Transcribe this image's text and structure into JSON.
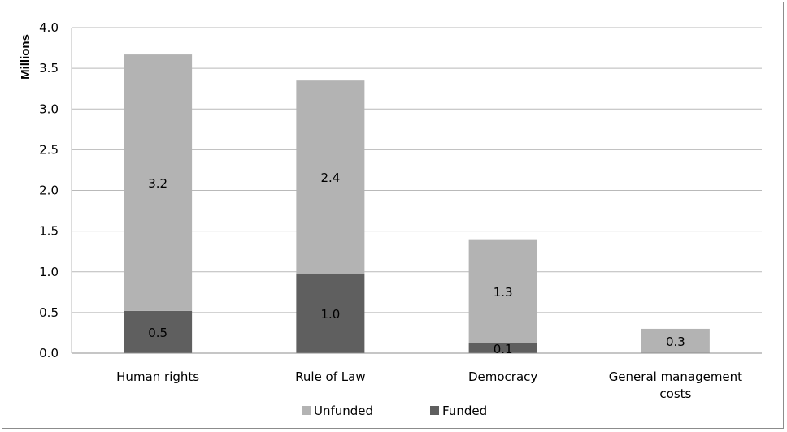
{
  "chart_data": {
    "type": "bar",
    "stacked": true,
    "ylabel": "Millions",
    "xlabel": "",
    "ylim": [
      0,
      4.0
    ],
    "yticks": [
      "0.0",
      "0.5",
      "1.0",
      "1.5",
      "2.0",
      "2.5",
      "3.0",
      "3.5",
      "4.0"
    ],
    "grid": true,
    "legend_position": "bottom",
    "categories": [
      [
        "Human rights"
      ],
      [
        "Rule of Law"
      ],
      [
        "Democracy"
      ],
      [
        "General management",
        "costs"
      ]
    ],
    "series": [
      {
        "name": "Funded",
        "color": "#5f5f5f",
        "values": [
          0.52,
          0.98,
          0.12,
          0.0
        ],
        "labels": [
          "0.5",
          "1.0",
          "0.1",
          ""
        ]
      },
      {
        "name": "Unfunded",
        "color": "#b3b3b3",
        "values": [
          3.15,
          2.37,
          1.28,
          0.3
        ],
        "labels": [
          "3.2",
          "2.4",
          "1.3",
          "0.3"
        ]
      }
    ],
    "legend": [
      "Unfunded",
      "Funded"
    ]
  }
}
